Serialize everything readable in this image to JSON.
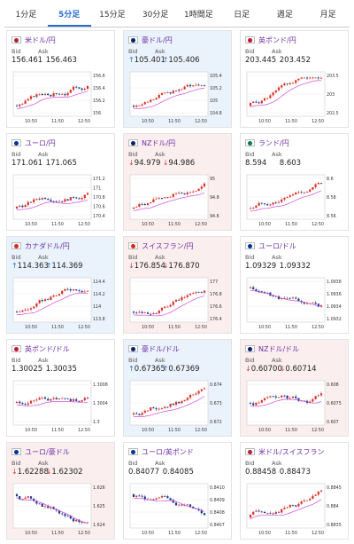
{
  "tabs": [
    "1分足",
    "5分足",
    "15分足",
    "30分足",
    "1時間足",
    "日足",
    "週足",
    "月足"
  ],
  "active_tab": 1,
  "labels": {
    "bid": "Bid",
    "ask": "Ask"
  },
  "colors": {
    "up_bg": "#eaf3fb",
    "down_bg": "#fbeeee",
    "candle_up": "#d9342b",
    "candle_down": "#1c3a8c",
    "ma": "#d24ad8",
    "accent": "#2a6ed2",
    "name": "#6b2fa3"
  },
  "cards": [
    {
      "name": "米ドル/円",
      "flag": "us-flag-icon",
      "dir": "none",
      "bid": "156.461",
      "ask": "156.463",
      "yticks": [
        "156.6",
        "156.4",
        "156.2",
        "156"
      ],
      "times": [
        "10:50",
        "11:50",
        "12:50"
      ],
      "trend": "up"
    },
    {
      "name": "豪ドル/円",
      "flag": "au-flag-icon",
      "dir": "up",
      "bid": "105.401",
      "ask": "105.406",
      "yticks": [
        "105.4",
        "105.2",
        "105",
        "104.8"
      ],
      "times": [
        "10:50",
        "11:50",
        "12:50"
      ],
      "trend": "up"
    },
    {
      "name": "英ポンド/円",
      "flag": "gb-flag-icon",
      "dir": "none",
      "bid": "203.445",
      "ask": "203.452",
      "yticks": [
        "203.5",
        "203",
        "202.5"
      ],
      "times": [
        "10:50",
        "11:50",
        "12:50"
      ],
      "trend": "up"
    },
    {
      "name": "ユーロ/円",
      "flag": "eu-flag-icon",
      "dir": "none",
      "bid": "171.061",
      "ask": "171.065",
      "yticks": [
        "171.2",
        "171",
        "170.8",
        "170.6",
        "170.4"
      ],
      "times": [
        "10:50",
        "11:50",
        "12:50"
      ],
      "trend": "up"
    },
    {
      "name": "NZドル/円",
      "flag": "nz-flag-icon",
      "dir": "down",
      "bid": "94.979",
      "ask": "94.986",
      "yticks": [
        "95",
        "94.8",
        "94.6"
      ],
      "times": [
        "10:50",
        "11:50",
        "12:50"
      ],
      "trend": "up"
    },
    {
      "name": "ランド/円",
      "flag": "za-flag-icon",
      "dir": "none",
      "bid": "8.594",
      "ask": "8.603",
      "yticks": [
        "8.6",
        "8.58",
        "8.56"
      ],
      "times": [
        "10:50",
        "11:50",
        "12:50"
      ],
      "trend": "up"
    },
    {
      "name": "カナダドル/円",
      "flag": "ca-flag-icon",
      "dir": "up",
      "bid": "114.363",
      "ask": "114.369",
      "yticks": [
        "114.4",
        "114.2",
        "114",
        "113.8"
      ],
      "times": [
        "10:50",
        "11:50",
        "12:50"
      ],
      "trend": "up"
    },
    {
      "name": "スイスフラン/円",
      "flag": "ch-flag-icon",
      "dir": "down",
      "bid": "176.854",
      "ask": "176.870",
      "yticks": [
        "177",
        "176.8",
        "176.6",
        "176.4"
      ],
      "times": [
        "10:50",
        "11:50",
        "12:50"
      ],
      "trend": "up"
    },
    {
      "name": "ユーロ/ドル",
      "flag": "eu-flag-icon",
      "dir": "none",
      "bid": "1.09329",
      "ask": "1.09332",
      "yticks": [
        "1.0938",
        "1.0936",
        "1.0934",
        "1.0932"
      ],
      "times": [
        "10:50",
        "11:50",
        "12:50"
      ],
      "trend": "down"
    },
    {
      "name": "英ポンド/ドル",
      "flag": "gb-flag-icon",
      "dir": "none",
      "bid": "1.30025",
      "ask": "1.30035",
      "yticks": [
        "1.3008",
        "1.3004",
        "1.3"
      ],
      "times": [
        "10:50",
        "11:50",
        "12:50"
      ],
      "trend": "flat"
    },
    {
      "name": "豪ドル/ドル",
      "flag": "au-flag-icon",
      "dir": "up",
      "bid": "0.67365",
      "ask": "0.67369",
      "yticks": [
        "0.674",
        "0.673",
        "0.672"
      ],
      "times": [
        "10:50",
        "11:50",
        "12:50"
      ],
      "trend": "up"
    },
    {
      "name": "NZドル/ドル",
      "flag": "nz-flag-icon",
      "dir": "down",
      "bid": "0.60700",
      "ask": "0.60714",
      "yticks": [
        "0.608",
        "0.6075",
        "0.607"
      ],
      "times": [
        "10:50",
        "11:50",
        "12:50"
      ],
      "trend": "flat"
    },
    {
      "name": "ユーロ/豪ドル",
      "flag": "eu-flag-icon",
      "dir": "down",
      "bid": "1.62288",
      "ask": "1.62302",
      "yticks": [
        "1.626",
        "1.625",
        "1.624"
      ],
      "times": [
        "10:50",
        "11:50",
        "12:50"
      ],
      "trend": "down"
    },
    {
      "name": "ユーロ/英ポンド",
      "flag": "eu-flag-icon",
      "dir": "none",
      "bid": "0.84077",
      "ask": "0.84085",
      "yticks": [
        "0.8410",
        "0.8409",
        "0.8408",
        "0.8407"
      ],
      "times": [
        "10:50",
        "11:50",
        "12:50"
      ],
      "trend": "down"
    },
    {
      "name": "米ドル/スイスフラン",
      "flag": "us-flag-icon",
      "dir": "none",
      "bid": "0.88458",
      "ask": "0.88473",
      "yticks": [
        "0.8845",
        "0.884",
        "0.8835"
      ],
      "times": [
        "10:50",
        "11:50",
        "12:50"
      ],
      "trend": "up"
    }
  ]
}
